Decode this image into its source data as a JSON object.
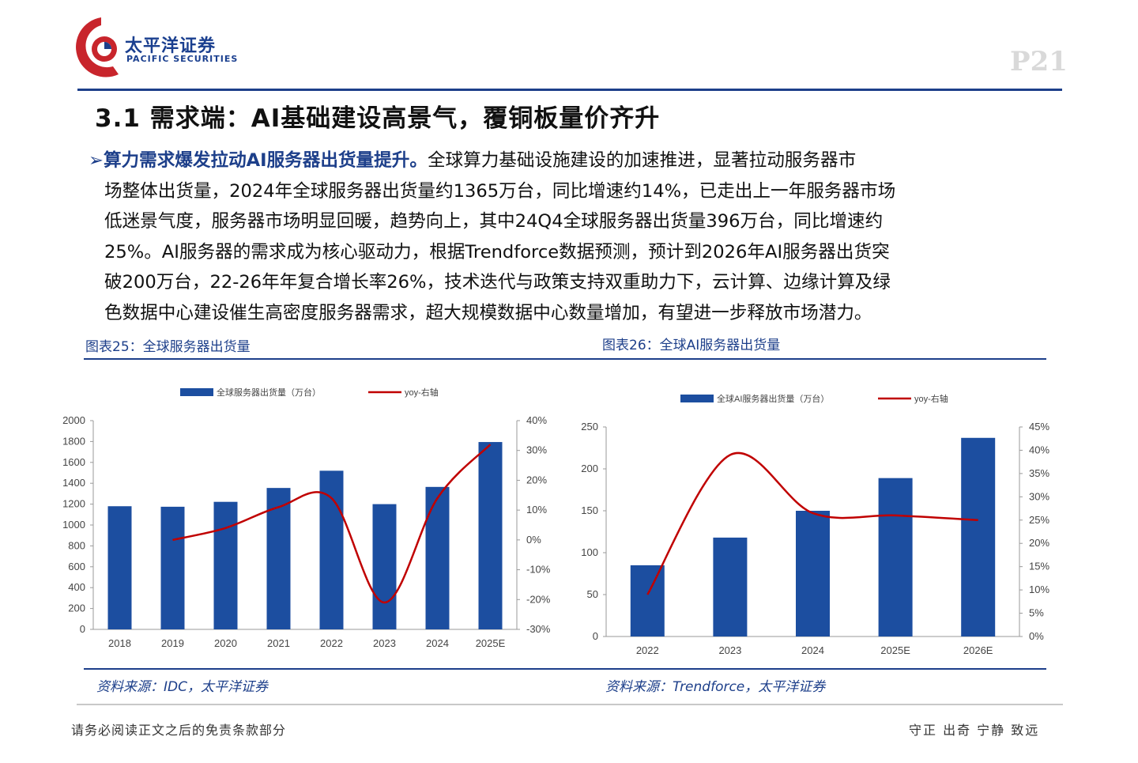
{
  "header": {
    "brand_cn": "太平洋证券",
    "brand_en": "PACIFIC SECURITIES",
    "page_number": "P21",
    "brand_color": "#c8252c",
    "accent_color": "#1d3f8a"
  },
  "section_title": "3.1 需求端：AI基础建设高景气，覆铜板量价齐升",
  "paragraph": {
    "bullet": "➢",
    "lead": "算力需求爆发拉动AI服务器出货量提升。",
    "line1_rest": "全球算力基础设施建设的加速推进，显著拉动服务器市",
    "line2": "场整体出货量，2024年全球服务器出货量约1365万台，同比增速约14%，已走出上一年服务器市场",
    "line3": "低迷景气度，服务器市场明显回暖，趋势向上，其中24Q4全球服务器出货量396万台，同比增速约",
    "line4": "25%。AI服务器的需求成为核心驱动力，根据Trendforce数据预测，预计到2026年AI服务器出货突",
    "line5": "破200万台，22-26年年复合增长率26%，技术迭代与政策支持双重助力下，云计算、边缘计算及绿",
    "line6": "色数据中心建设催生高密度服务器需求，超大规模数据中心数量增加，有望进一步释放市场潜力。"
  },
  "figures": {
    "caption25": "图表25：全球服务器出货量",
    "caption26": "图表26：全球AI服务器出货量",
    "source25": "资料来源：IDC，太平洋证券",
    "source26": "资料来源：Trendforce，太平洋证券"
  },
  "footer": {
    "left": "请务必阅读正文之后的免责条款部分",
    "right": "守正 出奇 宁静 致远"
  },
  "chart_data": [
    {
      "type": "bar",
      "categories": [
        "2018",
        "2019",
        "2020",
        "2021",
        "2022",
        "2023",
        "2024",
        "2025E"
      ],
      "series": [
        {
          "name": "全球服务器出货量（万台）",
          "type": "bar",
          "axis": "left",
          "color": "#1c4ea0",
          "values": [
            1180,
            1175,
            1222,
            1355,
            1520,
            1200,
            1365,
            1795
          ]
        },
        {
          "name": "yoy-右轴",
          "type": "line",
          "axis": "right",
          "color": "#c00000",
          "values": [
            null,
            0.0,
            4.0,
            11.0,
            14.0,
            -21.0,
            14.0,
            32.0
          ]
        }
      ],
      "ylim": [
        0,
        2000
      ],
      "yticks": [
        "0",
        "200",
        "400",
        "600",
        "800",
        "1000",
        "1200",
        "1400",
        "1600",
        "1800",
        "2000"
      ],
      "y2lim": [
        -30,
        40
      ],
      "y2ticks": [
        "-30%",
        "-20%",
        "-10%",
        "0%",
        "10%",
        "20%",
        "30%",
        "40%"
      ],
      "legend_position": "top"
    },
    {
      "type": "bar",
      "categories": [
        "2022",
        "2023",
        "2024",
        "2025E",
        "2026E"
      ],
      "series": [
        {
          "name": "全球AI服务器出货量（万台）",
          "type": "bar",
          "axis": "left",
          "color": "#1c4ea0",
          "values": [
            85,
            118,
            150,
            189,
            237
          ]
        },
        {
          "name": "yoy-右轴",
          "type": "line",
          "axis": "right",
          "color": "#c00000",
          "values": [
            9.0,
            39.0,
            26.5,
            26.0,
            25.0
          ]
        }
      ],
      "ylim": [
        0,
        250
      ],
      "yticks": [
        "0",
        "50",
        "100",
        "150",
        "200",
        "250"
      ],
      "y2lim": [
        0,
        45
      ],
      "y2ticks": [
        "0%",
        "5%",
        "10%",
        "15%",
        "20%",
        "25%",
        "30%",
        "35%",
        "40%",
        "45%"
      ],
      "legend_position": "top"
    }
  ]
}
